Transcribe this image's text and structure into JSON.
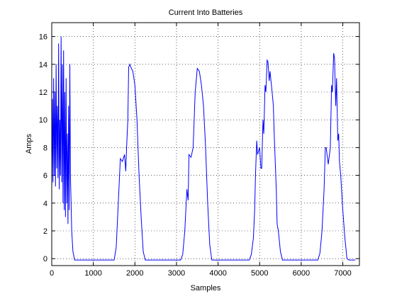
{
  "chart_data": {
    "type": "line",
    "title": "Current Into Batteries",
    "xlabel": "Samples",
    "ylabel": "Amps",
    "color": "#0000ff",
    "grid": true,
    "xlim": [
      0,
      7400
    ],
    "ylim": [
      -0.5,
      17
    ],
    "xticks": [
      0,
      1000,
      2000,
      3000,
      4000,
      5000,
      6000,
      7000
    ],
    "yticks": [
      0,
      2,
      4,
      6,
      8,
      10,
      12,
      14,
      16
    ],
    "x": [
      0,
      15,
      30,
      45,
      60,
      75,
      90,
      105,
      120,
      135,
      150,
      165,
      180,
      195,
      210,
      225,
      240,
      255,
      270,
      285,
      300,
      315,
      330,
      345,
      360,
      375,
      390,
      405,
      420,
      435,
      450,
      480,
      510,
      550,
      1500,
      1550,
      1600,
      1650,
      1700,
      1750,
      1780,
      1800,
      1830,
      1850,
      1880,
      1900,
      1950,
      2000,
      2050,
      2100,
      2150,
      2200,
      2250,
      3100,
      3150,
      3200,
      3250,
      3280,
      3300,
      3350,
      3400,
      3450,
      3500,
      3550,
      3600,
      3650,
      3700,
      3750,
      3800,
      3850,
      4750,
      4800,
      4850,
      4880,
      4900,
      4930,
      4950,
      5000,
      5030,
      5050,
      5080,
      5100,
      5130,
      5150,
      5180,
      5200,
      5230,
      5250,
      5300,
      5330,
      5350,
      5400,
      5420,
      5450,
      5500,
      5550,
      6400,
      6450,
      6500,
      6550,
      6580,
      6600,
      6650,
      6700,
      6730,
      6750,
      6780,
      6800,
      6830,
      6850,
      6880,
      6900,
      6920,
      6950,
      7000,
      7050,
      7100,
      7150,
      7300
    ],
    "values": [
      5,
      11.5,
      5.5,
      13,
      6,
      12,
      5.2,
      14,
      6.5,
      11,
      5.8,
      15.5,
      5,
      10,
      6,
      16,
      5.5,
      14,
      4,
      15,
      3.5,
      12,
      3,
      13,
      4,
      9,
      2.5,
      11,
      3.5,
      14,
      6,
      2,
      0.5,
      -0.1,
      -0.1,
      0.8,
      4,
      7.2,
      7,
      7.5,
      6.3,
      8,
      10,
      13.8,
      14,
      13.8,
      13.5,
      12.5,
      10,
      6,
      3,
      0.5,
      -0.1,
      -0.1,
      0.3,
      2,
      5,
      4.2,
      7.5,
      7.3,
      8,
      12,
      13.7,
      13.5,
      12.5,
      11,
      8,
      4,
      1,
      -0.1,
      -0.1,
      0.3,
      1.5,
      3.5,
      6,
      8.5,
      7.5,
      8,
      6.5,
      6.5,
      10,
      9,
      12.5,
      12,
      14.3,
      14.2,
      12.8,
      13.5,
      12,
      11,
      9,
      5,
      2.5,
      2,
      0.5,
      -0.1,
      -0.1,
      0.4,
      2,
      5,
      8,
      8,
      6.8,
      8,
      12.5,
      12,
      14.8,
      14.5,
      11,
      13,
      8.5,
      9,
      7,
      6,
      3.5,
      1.5,
      0,
      -0.1,
      -0.1
    ]
  }
}
